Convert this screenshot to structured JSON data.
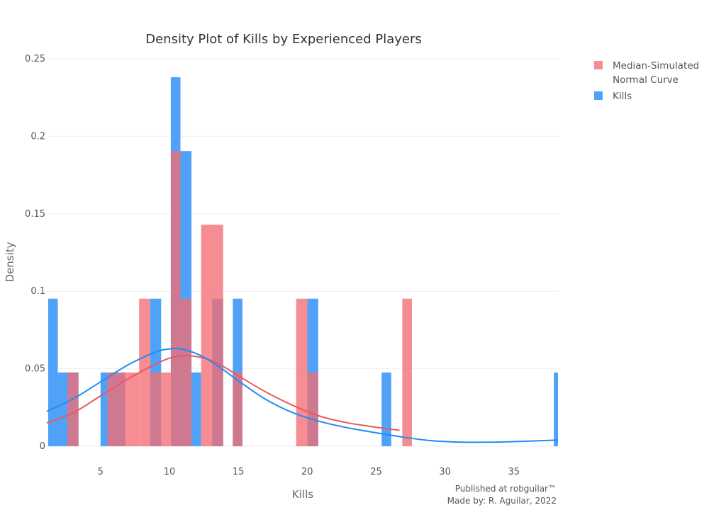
{
  "chart_data": {
    "type": "histogram",
    "title": "Density Plot of Kills by Experienced Players",
    "xlabel": "Kills",
    "ylabel": "Density",
    "xlim": [
      1.1,
      38.2
    ],
    "ylim": [
      0,
      0.25
    ],
    "x_ticks": [
      5,
      10,
      15,
      20,
      25,
      30,
      35
    ],
    "x_tick_labels": [
      "5",
      "10",
      "15",
      "20",
      "25",
      "30",
      "35"
    ],
    "y_ticks": [
      0,
      0.05,
      0.1,
      0.15,
      0.2,
      0.25
    ],
    "y_tick_labels": [
      "0",
      "0.05",
      "0.1",
      "0.15",
      "0.2",
      "0.25"
    ],
    "grid": true,
    "legend_position": "top-right",
    "series": [
      {
        "name": "Kills",
        "color": "#1f8cf5",
        "bar_color": "#4fa2f7",
        "bins": [
          {
            "x0": 1.2,
            "x1": 1.9,
            "density": 0.0952
          },
          {
            "x0": 1.9,
            "x1": 3.4,
            "density": 0.0476
          },
          {
            "x0": 5.0,
            "x1": 6.8,
            "density": 0.0476
          },
          {
            "x0": 8.6,
            "x1": 9.4,
            "density": 0.0952
          },
          {
            "x0": 10.1,
            "x1": 10.8,
            "density": 0.2381
          },
          {
            "x0": 10.8,
            "x1": 11.6,
            "density": 0.1905
          },
          {
            "x0": 11.6,
            "x1": 12.3,
            "density": 0.0476
          },
          {
            "x0": 13.1,
            "x1": 13.9,
            "density": 0.0952
          },
          {
            "x0": 14.6,
            "x1": 15.3,
            "density": 0.0952
          },
          {
            "x0": 20.0,
            "x1": 20.8,
            "density": 0.0952
          },
          {
            "x0": 25.4,
            "x1": 26.1,
            "density": 0.0476
          },
          {
            "x0": 37.9,
            "x1": 38.2,
            "density": 0.0476
          }
        ],
        "curve": {
          "x": [
            1.1,
            3,
            5,
            7,
            9,
            10,
            10.5,
            11,
            12,
            13,
            14,
            15,
            17,
            19,
            21,
            23,
            25,
            27,
            29,
            31,
            33,
            35,
            37,
            38.2
          ],
          "y": [
            0.0225,
            0.0305,
            0.0415,
            0.0525,
            0.0608,
            0.0628,
            0.063,
            0.0625,
            0.0596,
            0.0548,
            0.0488,
            0.0423,
            0.0302,
            0.0215,
            0.0158,
            0.0118,
            0.0087,
            0.0058,
            0.0036,
            0.0027,
            0.0026,
            0.003,
            0.0036,
            0.004
          ]
        }
      },
      {
        "name": "Median-Simulated\n Normal Curve",
        "color": "#ec5860",
        "bar_color": "#f46d75",
        "bins": [
          {
            "x0": 2.6,
            "x1": 3.4,
            "density": 0.0476
          },
          {
            "x0": 5.5,
            "x1": 6.2,
            "density": 0.0476
          },
          {
            "x0": 6.2,
            "x1": 7.0,
            "density": 0.0476
          },
          {
            "x0": 7.0,
            "x1": 7.8,
            "density": 0.0476
          },
          {
            "x0": 7.8,
            "x1": 8.6,
            "density": 0.0952
          },
          {
            "x0": 8.6,
            "x1": 9.4,
            "density": 0.0476
          },
          {
            "x0": 9.4,
            "x1": 10.1,
            "density": 0.0476
          },
          {
            "x0": 10.1,
            "x1": 10.8,
            "density": 0.1905
          },
          {
            "x0": 10.8,
            "x1": 11.6,
            "density": 0.0952
          },
          {
            "x0": 12.3,
            "x1": 13.9,
            "density": 0.1429
          },
          {
            "x0": 14.6,
            "x1": 15.3,
            "density": 0.0476
          },
          {
            "x0": 19.2,
            "x1": 20.0,
            "density": 0.0952
          },
          {
            "x0": 20.0,
            "x1": 20.8,
            "density": 0.0476
          },
          {
            "x0": 26.9,
            "x1": 27.6,
            "density": 0.0952
          }
        ],
        "curve": {
          "x": [
            1.1,
            3,
            5,
            7,
            9,
            10,
            11,
            12,
            13,
            14,
            15,
            17,
            19,
            21,
            23,
            25,
            26.7
          ],
          "y": [
            0.015,
            0.0215,
            0.0325,
            0.0435,
            0.053,
            0.0568,
            0.0584,
            0.0578,
            0.0555,
            0.051,
            0.0455,
            0.035,
            0.0262,
            0.0192,
            0.015,
            0.0123,
            0.0103
          ]
        }
      }
    ],
    "legend_order": [
      "Median-Simulated\n Normal Curve",
      "Kills"
    ],
    "credits": [
      "Published at robguilar™",
      "Made by:  R. Aguilar, 2022"
    ]
  }
}
